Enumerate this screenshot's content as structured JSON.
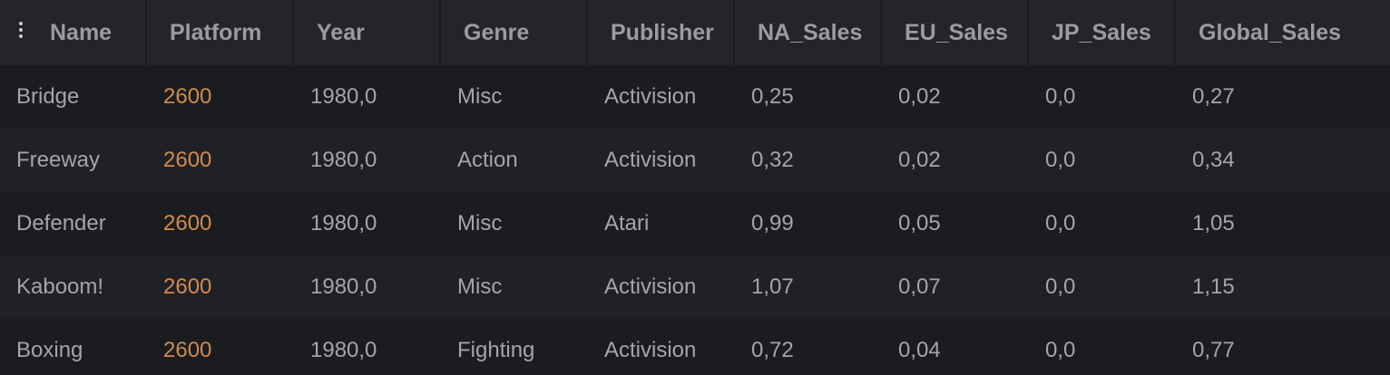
{
  "columns": [
    "Name",
    "Platform",
    "Year",
    "Genre",
    "Publisher",
    "NA_Sales",
    "EU_Sales",
    "JP_Sales",
    "Global_Sales"
  ],
  "rows": [
    [
      "Bridge",
      "2600",
      "1980,0",
      "Misc",
      "Activision",
      "0,25",
      "0,02",
      "0,0",
      "0,27"
    ],
    [
      "Freeway",
      "2600",
      "1980,0",
      "Action",
      "Activision",
      "0,32",
      "0,02",
      "0,0",
      "0,34"
    ],
    [
      "Defender",
      "2600",
      "1980,0",
      "Misc",
      "Atari",
      "0,99",
      "0,05",
      "0,0",
      "1,05"
    ],
    [
      "Kaboom!",
      "2600",
      "1980,0",
      "Misc",
      "Activision",
      "1,07",
      "0,07",
      "0,0",
      "1,15"
    ],
    [
      "Boxing",
      "2600",
      "1980,0",
      "Fighting",
      "Activision",
      "0,72",
      "0,04",
      "0,0",
      "0,77"
    ]
  ],
  "colors": {
    "platform_accent": "#d18b4a",
    "header_bg": "#24252a",
    "row_bg": "#1b1c20",
    "row_alt_bg": "#202126"
  },
  "icons": {
    "column_menu": "vertical-ellipsis-icon"
  }
}
